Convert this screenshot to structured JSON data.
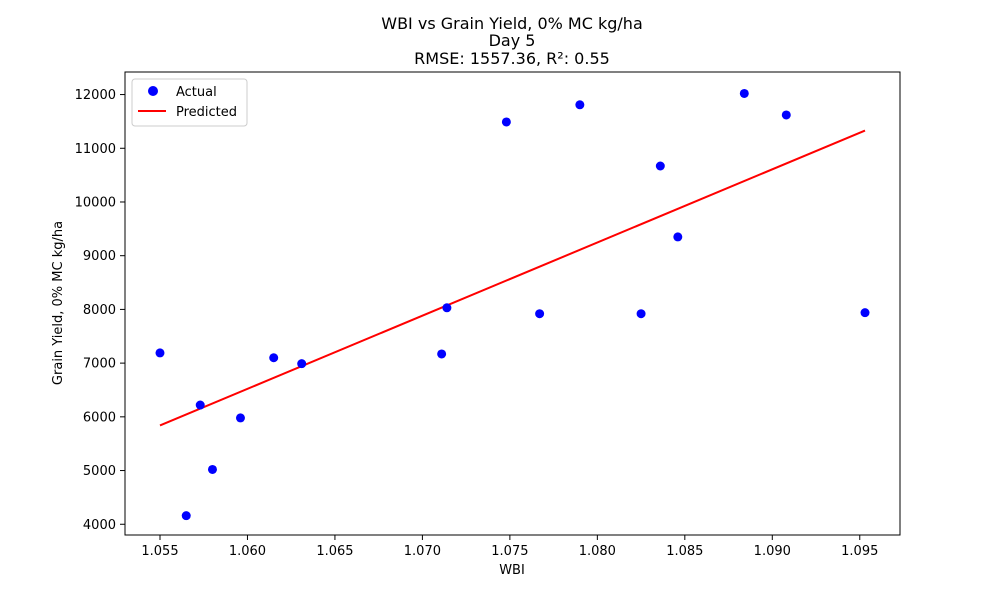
{
  "chart_data": {
    "type": "scatter",
    "title_lines": [
      "WBI vs Grain Yield, 0% MC kg/ha",
      "Day 5",
      "RMSE: 1557.36, R²: 0.55"
    ],
    "xlabel": "WBI",
    "ylabel": "Grain Yield, 0% MC kg/ha",
    "xlim": [
      1.053,
      1.0973
    ],
    "ylim": [
      3800,
      12420
    ],
    "x_ticks": [
      1.055,
      1.06,
      1.065,
      1.07,
      1.075,
      1.08,
      1.085,
      1.09,
      1.095
    ],
    "x_tick_labels": [
      "1.055",
      "1.060",
      "1.065",
      "1.070",
      "1.075",
      "1.080",
      "1.085",
      "1.090",
      "1.095"
    ],
    "y_ticks": [
      4000,
      5000,
      6000,
      7000,
      8000,
      9000,
      10000,
      11000,
      12000
    ],
    "y_tick_labels": [
      "4000",
      "5000",
      "6000",
      "7000",
      "8000",
      "9000",
      "10000",
      "11000",
      "12000"
    ],
    "grid": false,
    "legend_position": "top-left",
    "series": [
      {
        "name": "Actual",
        "kind": "scatter",
        "color": "#0000ff",
        "points": [
          {
            "x": 1.055,
            "y": 7190
          },
          {
            "x": 1.0565,
            "y": 4160
          },
          {
            "x": 1.0573,
            "y": 6220
          },
          {
            "x": 1.058,
            "y": 5020
          },
          {
            "x": 1.0596,
            "y": 5980
          },
          {
            "x": 1.0615,
            "y": 7100
          },
          {
            "x": 1.0631,
            "y": 6990
          },
          {
            "x": 1.0711,
            "y": 7170
          },
          {
            "x": 1.0714,
            "y": 8030
          },
          {
            "x": 1.0748,
            "y": 11490
          },
          {
            "x": 1.0767,
            "y": 7920
          },
          {
            "x": 1.079,
            "y": 11810
          },
          {
            "x": 1.0825,
            "y": 7920
          },
          {
            "x": 1.0836,
            "y": 10670
          },
          {
            "x": 1.0846,
            "y": 9350
          },
          {
            "x": 1.0884,
            "y": 12020
          },
          {
            "x": 1.0908,
            "y": 11620
          },
          {
            "x": 1.0953,
            "y": 7940
          }
        ]
      },
      {
        "name": "Predicted",
        "kind": "line",
        "color": "#ff0000",
        "points": [
          {
            "x": 1.055,
            "y": 5840
          },
          {
            "x": 1.0953,
            "y": 11330
          }
        ]
      }
    ]
  }
}
